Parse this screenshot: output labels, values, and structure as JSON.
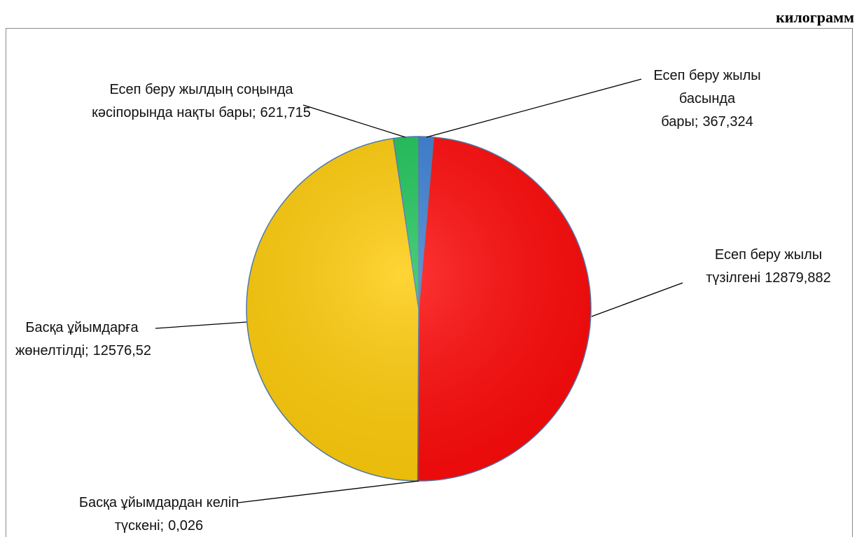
{
  "chart_data": {
    "type": "pie",
    "unit": "килограмм",
    "categories": [
      "Есеп беру жылы басында бары;",
      "Есеп беру жылы түзілгені",
      "Басқа ұйымдардан келіп түскені;",
      "Басқа ұйымдарға жөнелтілді;",
      "Есеп беру жылдың соңында кәсіпорында нақты бары;"
    ],
    "values": [
      367.324,
      12879.882,
      0.026,
      12576.52,
      621.715
    ],
    "value_labels": [
      "367,324",
      "12879,882",
      "0,026",
      "12576,52",
      "621,715"
    ],
    "colors": [
      "#3b7fd4",
      "#ff0a0a",
      "#8db34a",
      "#ffcc0a",
      "#1fc45a"
    ]
  }
}
